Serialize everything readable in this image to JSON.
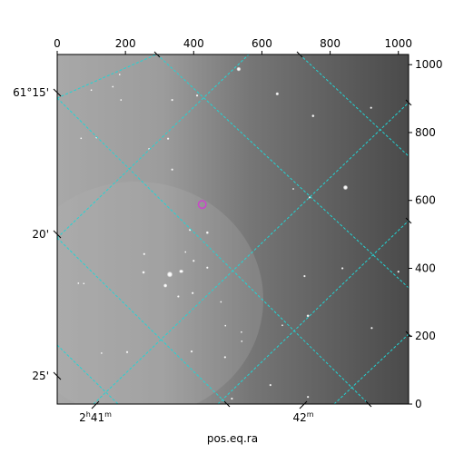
{
  "chart_data": {
    "type": "scatter",
    "xlabel": "pos.eq.ra",
    "ylabel": "",
    "pixel_x_ticks": [
      "0",
      "200",
      "400",
      "600",
      "800",
      "1000"
    ],
    "pixel_y_ticks": [
      "0",
      "200",
      "400",
      "600",
      "800",
      "1000"
    ],
    "ra_tick_labels": [
      {
        "h": "2",
        "m": "41"
      },
      {
        "h": "",
        "m": "42"
      }
    ],
    "dec_tick_labels": [
      "61°15'",
      "20'",
      "25'"
    ],
    "pixel_range": {
      "x": [
        0,
        1030
      ],
      "y": [
        0,
        1030
      ]
    },
    "grid": true,
    "grid_style": "dashed",
    "grid_color": "#22d4d4",
    "marker": {
      "x": 425,
      "y": 588,
      "color": "#cc44cc",
      "shape": "circle"
    },
    "stars": [
      {
        "x": 532,
        "y": 987,
        "s": 4.5
      },
      {
        "x": 645,
        "y": 914,
        "s": 3.5
      },
      {
        "x": 410,
        "y": 909,
        "s": 2.5
      },
      {
        "x": 337,
        "y": 896,
        "s": 2.5
      },
      {
        "x": 187,
        "y": 896,
        "s": 2.0
      },
      {
        "x": 750,
        "y": 849,
        "s": 3.0
      },
      {
        "x": 920,
        "y": 873,
        "s": 2.5
      },
      {
        "x": 325,
        "y": 782,
        "s": 2.5
      },
      {
        "x": 269,
        "y": 752,
        "s": 2.0
      },
      {
        "x": 337,
        "y": 691,
        "s": 2.5
      },
      {
        "x": 845,
        "y": 638,
        "s": 5.0
      },
      {
        "x": 692,
        "y": 634,
        "s": 2.0
      },
      {
        "x": 740,
        "y": 609,
        "s": 2.5
      },
      {
        "x": 389,
        "y": 513,
        "s": 2.5
      },
      {
        "x": 440,
        "y": 505,
        "s": 3.0
      },
      {
        "x": 376,
        "y": 448,
        "s": 2.0
      },
      {
        "x": 255,
        "y": 442,
        "s": 2.5
      },
      {
        "x": 400,
        "y": 422,
        "s": 2.5
      },
      {
        "x": 440,
        "y": 402,
        "s": 2.5
      },
      {
        "x": 362,
        "y": 391,
        "s": 3.5
      },
      {
        "x": 365,
        "y": 391,
        "s": 3.5
      },
      {
        "x": 253,
        "y": 388,
        "s": 3.0
      },
      {
        "x": 725,
        "y": 377,
        "s": 2.5
      },
      {
        "x": 836,
        "y": 400,
        "s": 2.5
      },
      {
        "x": 1000,
        "y": 390,
        "s": 2.5
      },
      {
        "x": 330,
        "y": 382,
        "s": 6.0
      },
      {
        "x": 317,
        "y": 349,
        "s": 4.0
      },
      {
        "x": 355,
        "y": 317,
        "s": 2.5
      },
      {
        "x": 397,
        "y": 327,
        "s": 2.5
      },
      {
        "x": 480,
        "y": 301,
        "s": 2.0
      },
      {
        "x": 493,
        "y": 231,
        "s": 2.0
      },
      {
        "x": 540,
        "y": 212,
        "s": 2.0
      },
      {
        "x": 541,
        "y": 185,
        "s": 2.0
      },
      {
        "x": 735,
        "y": 260,
        "s": 3.0
      },
      {
        "x": 660,
        "y": 232,
        "s": 2.0
      },
      {
        "x": 922,
        "y": 224,
        "s": 2.5
      },
      {
        "x": 394,
        "y": 155,
        "s": 2.5
      },
      {
        "x": 492,
        "y": 138,
        "s": 2.5
      },
      {
        "x": 625,
        "y": 56,
        "s": 2.5
      },
      {
        "x": 735,
        "y": 21,
        "s": 2.5
      },
      {
        "x": 512,
        "y": 16,
        "s": 2.5
      },
      {
        "x": 205,
        "y": 153,
        "s": 2.5
      },
      {
        "x": 130,
        "y": 150,
        "s": 2.0
      },
      {
        "x": 78,
        "y": 355,
        "s": 2.0
      },
      {
        "x": 62,
        "y": 356,
        "s": 2.0
      },
      {
        "x": 100,
        "y": 925,
        "s": 2.0
      },
      {
        "x": 183,
        "y": 971,
        "s": 2.0
      },
      {
        "x": 70,
        "y": 783,
        "s": 2.0
      },
      {
        "x": 115,
        "y": 785,
        "s": 2.0
      },
      {
        "x": 163,
        "y": 935,
        "s": 2.0
      }
    ]
  }
}
